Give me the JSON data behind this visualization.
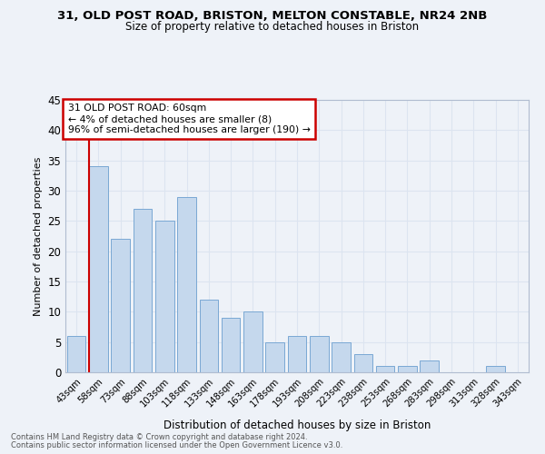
{
  "title1": "31, OLD POST ROAD, BRISTON, MELTON CONSTABLE, NR24 2NB",
  "title2": "Size of property relative to detached houses in Briston",
  "xlabel": "Distribution of detached houses by size in Briston",
  "ylabel": "Number of detached properties",
  "bar_color": "#c5d8ed",
  "bar_edge_color": "#7aa8d4",
  "categories": [
    "43sqm",
    "58sqm",
    "73sqm",
    "88sqm",
    "103sqm",
    "118sqm",
    "133sqm",
    "148sqm",
    "163sqm",
    "178sqm",
    "193sqm",
    "208sqm",
    "223sqm",
    "238sqm",
    "253sqm",
    "268sqm",
    "283sqm",
    "298sqm",
    "313sqm",
    "328sqm",
    "343sqm"
  ],
  "values": [
    6,
    34,
    22,
    27,
    25,
    29,
    12,
    9,
    10,
    5,
    6,
    6,
    5,
    3,
    1,
    1,
    2,
    0,
    0,
    1,
    0
  ],
  "ylim": [
    0,
    45
  ],
  "yticks": [
    0,
    5,
    10,
    15,
    20,
    25,
    30,
    35,
    40,
    45
  ],
  "property_line_x": 0.575,
  "annotation_line1": "31 OLD POST ROAD: 60sqm",
  "annotation_line2": "← 4% of detached houses are smaller (8)",
  "annotation_line3": "96% of semi-detached houses are larger (190) →",
  "annotation_box_color": "#ffffff",
  "annotation_box_edge_color": "#cc0000",
  "grid_color": "#dce4f0",
  "footnote1": "Contains HM Land Registry data © Crown copyright and database right 2024.",
  "footnote2": "Contains public sector information licensed under the Open Government Licence v3.0.",
  "bg_color": "#eef2f8"
}
